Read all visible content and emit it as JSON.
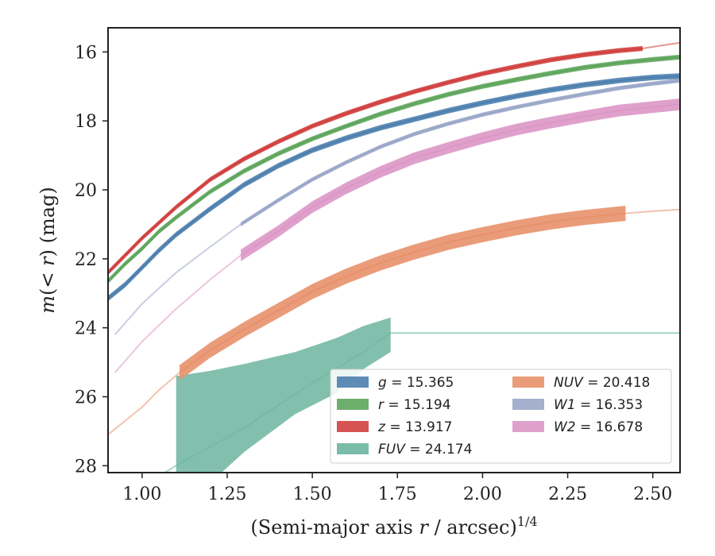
{
  "chart_data": {
    "type": "line",
    "x_axis": {
      "label_prefix": "(Semi-major axis ",
      "label_var": "r",
      "label_suffix": " / arcsec)",
      "label_exp": "1/4",
      "xlim": [
        0.9,
        2.58
      ],
      "ticks": [
        1.0,
        1.25,
        1.5,
        1.75,
        2.0,
        2.25,
        2.5
      ],
      "tick_labels": [
        "1.00",
        "1.25",
        "1.50",
        "1.75",
        "2.00",
        "2.25",
        "2.50"
      ]
    },
    "y_axis": {
      "label_m": "m",
      "label_open": "(",
      "label_lt": "< ",
      "label_r": "r",
      "label_close": ") (mag)",
      "ylim": [
        28.2,
        15.3
      ],
      "inverted": true,
      "ticks": [
        16,
        18,
        20,
        22,
        24,
        26,
        28
      ],
      "tick_labels": [
        "16",
        "18",
        "20",
        "22",
        "24",
        "26",
        "28"
      ]
    },
    "grid": false,
    "legend_position": "lower-right",
    "series": [
      {
        "key": "g",
        "name_var": "g",
        "name_val": " = 15.365",
        "color": "#4c7fae",
        "x_solid": [
          0.9,
          0.95,
          1.0,
          1.05,
          1.1,
          1.2,
          1.3,
          1.4,
          1.5,
          1.6,
          1.7,
          1.8,
          1.9,
          2.0,
          2.1,
          2.2,
          2.3,
          2.4,
          2.5,
          2.58
        ],
        "y_solid": [
          23.15,
          22.75,
          22.25,
          21.75,
          21.3,
          20.55,
          19.85,
          19.3,
          18.85,
          18.5,
          18.2,
          17.95,
          17.7,
          17.48,
          17.28,
          17.1,
          16.95,
          16.83,
          16.74,
          16.7
        ],
        "band": 0.08
      },
      {
        "key": "r",
        "name_var": "r",
        "name_val": " = 15.194",
        "color": "#5ea55c",
        "x_solid": [
          0.9,
          0.95,
          1.0,
          1.05,
          1.1,
          1.2,
          1.3,
          1.4,
          1.5,
          1.6,
          1.7,
          1.8,
          1.9,
          2.0,
          2.1,
          2.2,
          2.3,
          2.4,
          2.5,
          2.58
        ],
        "y_solid": [
          22.65,
          22.15,
          21.7,
          21.2,
          20.8,
          20.05,
          19.45,
          18.95,
          18.52,
          18.15,
          17.8,
          17.5,
          17.23,
          17.0,
          16.8,
          16.62,
          16.45,
          16.32,
          16.22,
          16.15
        ],
        "band": 0.07
      },
      {
        "key": "z",
        "name_var": "z",
        "name_val": " = 13.917",
        "color": "#d0403f",
        "x_solid": [
          0.9,
          0.95,
          1.0,
          1.05,
          1.1,
          1.2,
          1.3,
          1.4,
          1.5,
          1.6,
          1.7,
          1.8,
          1.9,
          2.0,
          2.1,
          2.2,
          2.3,
          2.4,
          2.47
        ],
        "y_solid": [
          22.4,
          21.9,
          21.4,
          20.95,
          20.5,
          19.7,
          19.1,
          18.6,
          18.15,
          17.78,
          17.45,
          17.15,
          16.88,
          16.63,
          16.42,
          16.23,
          16.08,
          15.96,
          15.9
        ],
        "x_faded": [
          2.47,
          2.58
        ],
        "y_faded": [
          15.9,
          15.73
        ],
        "band": 0.07
      },
      {
        "key": "FUV",
        "name_var": "FUV",
        "name_val": " = 24.174",
        "color": "#6cb59f",
        "x_band": [
          1.1,
          1.2,
          1.3,
          1.45,
          1.57,
          1.65,
          1.73
        ],
        "y_lo": [
          28.5,
          28.5,
          27.6,
          26.5,
          25.9,
          25.2,
          24.7
        ],
        "y_hi": [
          25.4,
          25.25,
          25.05,
          24.7,
          24.3,
          23.95,
          23.7
        ],
        "x_faded": [
          0.9,
          1.0,
          1.1,
          1.3,
          1.5,
          1.65,
          1.73
        ],
        "y_faded": [
          29.3,
          28.6,
          28.0,
          26.9,
          25.6,
          24.7,
          24.15
        ],
        "x_flat": [
          1.73,
          2.58
        ],
        "y_flat": [
          24.15,
          24.15
        ]
      },
      {
        "key": "NUV",
        "name_var": "NUV",
        "name_val": " = 20.418",
        "color": "#e8916c",
        "x_solid": [
          1.11,
          1.2,
          1.3,
          1.4,
          1.5,
          1.6,
          1.7,
          1.8,
          1.9,
          2.0,
          2.1,
          2.2,
          2.3,
          2.42
        ],
        "y_solid": [
          25.3,
          24.65,
          24.05,
          23.5,
          22.95,
          22.5,
          22.12,
          21.8,
          21.52,
          21.3,
          21.1,
          20.93,
          20.8,
          20.68
        ],
        "x_faded": [
          0.9,
          0.95,
          1.0,
          1.05,
          1.11
        ],
        "y_faded": [
          27.1,
          26.7,
          26.3,
          25.8,
          25.3
        ],
        "x_faded2": [
          2.42,
          2.5,
          2.58
        ],
        "y_faded2": [
          20.68,
          20.62,
          20.57
        ],
        "band": 0.22
      },
      {
        "key": "W1",
        "name_var": "W1",
        "name_val": " = 16.353",
        "color": "#9aa7c8",
        "x_solid": [
          1.29,
          1.4,
          1.5,
          1.6,
          1.7,
          1.8,
          1.9,
          2.0,
          2.1,
          2.2,
          2.3,
          2.4,
          2.5,
          2.58
        ],
        "y_solid": [
          21.0,
          20.3,
          19.7,
          19.2,
          18.75,
          18.38,
          18.08,
          17.82,
          17.6,
          17.4,
          17.22,
          17.05,
          16.92,
          16.83
        ],
        "x_faded": [
          0.92,
          1.0,
          1.1,
          1.2,
          1.29
        ],
        "y_faded": [
          24.2,
          23.3,
          22.4,
          21.65,
          21.0
        ],
        "band": 0.06
      },
      {
        "key": "W2",
        "name_var": "W2",
        "name_val": " = 16.678",
        "color": "#dc97c6",
        "x_solid": [
          1.29,
          1.4,
          1.5,
          1.6,
          1.7,
          1.8,
          1.9,
          2.0,
          2.1,
          2.2,
          2.3,
          2.4,
          2.5,
          2.58
        ],
        "y_solid": [
          21.9,
          21.2,
          20.5,
          19.95,
          19.48,
          19.08,
          18.78,
          18.5,
          18.25,
          18.05,
          17.87,
          17.7,
          17.6,
          17.52
        ],
        "x_faded": [
          0.92,
          1.0,
          1.1,
          1.2,
          1.29
        ],
        "y_faded": [
          25.3,
          24.4,
          23.45,
          22.6,
          21.9
        ],
        "band": 0.17
      }
    ],
    "legend": {
      "col1": [
        "g",
        "r",
        "z",
        "FUV"
      ],
      "col2": [
        "NUV",
        "W1",
        "W2"
      ]
    }
  }
}
